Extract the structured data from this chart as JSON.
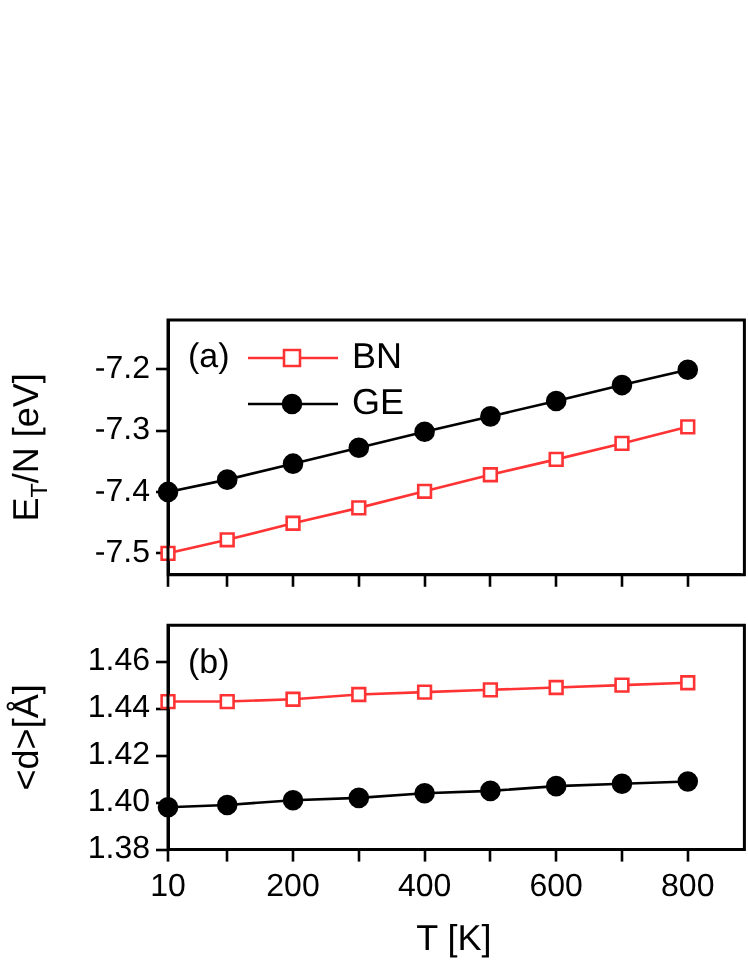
{
  "chart_data": [
    {
      "type": "line",
      "ylabel": "E$_{T}$/N [eV]",
      "annotations": [
        "(a)"
      ],
      "legend": "top left",
      "tick_labels": "y",
      "line_style": "solid",
      "grid": false,
      "x": [
        10,
        100,
        200,
        300,
        400,
        500,
        600,
        700,
        800
      ],
      "xlim": [
        10,
        880
      ],
      "xticks": [
        10,
        {
          "value": 100,
          "label": null
        },
        200,
        {
          "value": 300,
          "label": null
        },
        400,
        {
          "value": 500,
          "label": null
        },
        600,
        {
          "value": 700,
          "label": null
        },
        800
      ],
      "ylim": [
        -7.535,
        -7.12
      ],
      "yticks": [
        -7.5,
        -7.4,
        -7.3,
        -7.2
      ],
      "series": [
        {
          "name": "BN",
          "color": "#ff3333",
          "marker": "square",
          "values": [
            -7.5,
            -7.478,
            -7.451,
            -7.426,
            -7.399,
            -7.372,
            -7.347,
            -7.321,
            -7.294
          ]
        },
        {
          "name": "GE",
          "color": "#000000",
          "marker": "circle",
          "values": [
            -7.4,
            -7.38,
            -7.354,
            -7.328,
            -7.302,
            -7.277,
            -7.252,
            -7.226,
            -7.201
          ]
        }
      ]
    },
    {
      "type": "line",
      "xlabel": "T [K]",
      "ylabel": "<d>[Å]",
      "annotations": [
        "(b)"
      ],
      "line_style": "solid",
      "grid": false,
      "x": [
        10,
        100,
        200,
        300,
        400,
        500,
        600,
        700,
        800
      ],
      "xlim": [
        10,
        880
      ],
      "xticks": [
        10,
        {
          "value": 100,
          "label": null
        },
        200,
        {
          "value": 300,
          "label": null
        },
        400,
        {
          "value": 500,
          "label": null
        },
        600,
        {
          "value": 700,
          "label": null
        },
        800
      ],
      "ylim": [
        1.38,
        1.4755
      ],
      "yticks": [
        {
          "value": 1.38,
          "label": "1.38"
        },
        {
          "value": 1.4,
          "label": "1.40"
        },
        {
          "value": 1.42,
          "label": "1.42"
        },
        {
          "value": 1.44,
          "label": "1.44"
        },
        {
          "value": 1.46,
          "label": "1.46"
        }
      ],
      "series": [
        {
          "color": "#ff3333",
          "marker": "square",
          "values": [
            1.443,
            1.443,
            1.444,
            1.446,
            1.447,
            1.448,
            1.449,
            1.45,
            1.451
          ]
        },
        {
          "color": "#000000",
          "marker": "circle",
          "values": [
            1.398,
            1.399,
            1.401,
            1.402,
            1.404,
            1.405,
            1.407,
            1.408,
            1.409
          ]
        }
      ]
    }
  ]
}
